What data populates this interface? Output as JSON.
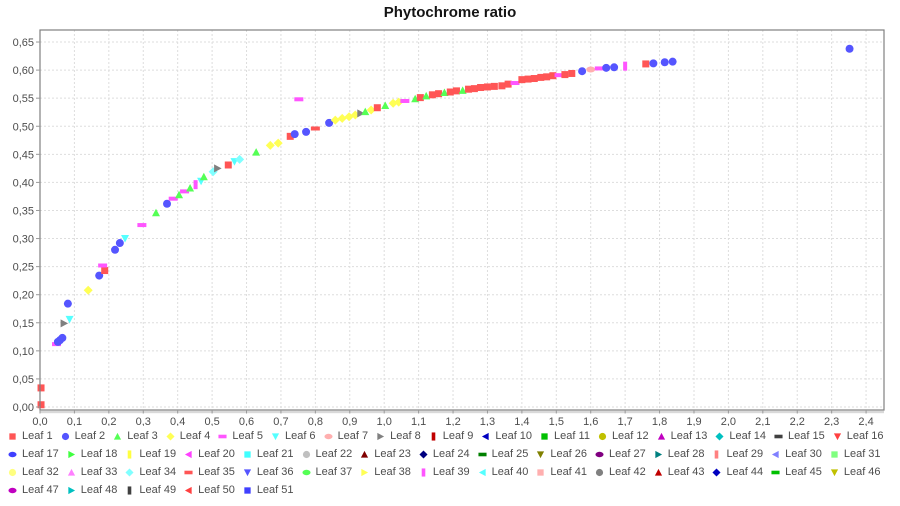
{
  "title": "Phytochrome ratio",
  "axes": {
    "x_tick_labels": [
      "0,0",
      "0,1",
      "0,2",
      "0,3",
      "0,4",
      "0,5",
      "0,6",
      "0,7",
      "0,8",
      "0,9",
      "1,0",
      "1,1",
      "1,2",
      "1,3",
      "1,4",
      "1,5",
      "1,6",
      "1,7",
      "1,8",
      "1,9",
      "2,0",
      "2,1",
      "2,2",
      "2,3",
      "2,4"
    ],
    "y_tick_labels": [
      "0,00",
      "0,05",
      "0,10",
      "0,15",
      "0,20",
      "0,25",
      "0,30",
      "0,35",
      "0,40",
      "0,45",
      "0,50",
      "0,55",
      "0,60",
      "0,65"
    ]
  },
  "colors": {
    "grid": "#dddddd",
    "plot_border": "#808080",
    "axis_band": "#d9d9d9",
    "tick": "#999999",
    "text": "#4d4d4d",
    "title_text": "#141414",
    "background": "#ffffff"
  },
  "legend": {
    "items": [
      {
        "label": "Leaf 1",
        "color": "#FF5555",
        "shape": "square"
      },
      {
        "label": "Leaf 2",
        "color": "#5555FF",
        "shape": "circle"
      },
      {
        "label": "Leaf 3",
        "color": "#55FF55",
        "shape": "triangle-up"
      },
      {
        "label": "Leaf 4",
        "color": "#FFFF55",
        "shape": "diamond"
      },
      {
        "label": "Leaf 5",
        "color": "#FF55FF",
        "shape": "hrect"
      },
      {
        "label": "Leaf 6",
        "color": "#55FFFF",
        "shape": "triangle-down"
      },
      {
        "label": "Leaf 7",
        "color": "#FFAFAF",
        "shape": "hellipse"
      },
      {
        "label": "Leaf 8",
        "color": "#808080",
        "shape": "triangle-right"
      },
      {
        "label": "Leaf 9",
        "color": "#C00000",
        "shape": "vrect"
      },
      {
        "label": "Leaf 10",
        "color": "#0000C0",
        "shape": "triangle-left"
      },
      {
        "label": "Leaf 11",
        "color": "#00C000",
        "shape": "square"
      },
      {
        "label": "Leaf 12",
        "color": "#C0C000",
        "shape": "circle"
      },
      {
        "label": "Leaf 13",
        "color": "#C000C0",
        "shape": "triangle-up"
      },
      {
        "label": "Leaf 14",
        "color": "#00C0C0",
        "shape": "diamond"
      },
      {
        "label": "Leaf 15",
        "color": "#404040",
        "shape": "hrect"
      },
      {
        "label": "Leaf 16",
        "color": "#FF4040",
        "shape": "triangle-down"
      },
      {
        "label": "Leaf 17",
        "color": "#4040FF",
        "shape": "hellipse"
      },
      {
        "label": "Leaf 18",
        "color": "#40FF40",
        "shape": "triangle-right"
      },
      {
        "label": "Leaf 19",
        "color": "#FFFF40",
        "shape": "vrect"
      },
      {
        "label": "Leaf 20",
        "color": "#FF40FF",
        "shape": "triangle-left"
      },
      {
        "label": "Leaf 21",
        "color": "#40FFFF",
        "shape": "square"
      },
      {
        "label": "Leaf 22",
        "color": "#C0C0C0",
        "shape": "circle"
      },
      {
        "label": "Leaf 23",
        "color": "#800000",
        "shape": "triangle-up"
      },
      {
        "label": "Leaf 24",
        "color": "#000080",
        "shape": "diamond"
      },
      {
        "label": "Leaf 25",
        "color": "#008000",
        "shape": "hrect"
      },
      {
        "label": "Leaf 26",
        "color": "#808000",
        "shape": "triangle-down"
      },
      {
        "label": "Leaf 27",
        "color": "#800080",
        "shape": "hellipse"
      },
      {
        "label": "Leaf 28",
        "color": "#008080",
        "shape": "triangle-right"
      },
      {
        "label": "Leaf 29",
        "color": "#FF8080",
        "shape": "vrect"
      },
      {
        "label": "Leaf 30",
        "color": "#8080FF",
        "shape": "triangle-left"
      },
      {
        "label": "Leaf 31",
        "color": "#80FF80",
        "shape": "square"
      },
      {
        "label": "Leaf 32",
        "color": "#FFFF80",
        "shape": "circle"
      },
      {
        "label": "Leaf 33",
        "color": "#FF80FF",
        "shape": "triangle-up"
      },
      {
        "label": "Leaf 34",
        "color": "#80FFFF",
        "shape": "diamond"
      },
      {
        "label": "Leaf 35",
        "color": "#FF5555",
        "shape": "hrect"
      },
      {
        "label": "Leaf 36",
        "color": "#5555FF",
        "shape": "triangle-down"
      },
      {
        "label": "Leaf 37",
        "color": "#55FF55",
        "shape": "hellipse"
      },
      {
        "label": "Leaf 38",
        "color": "#FFFF55",
        "shape": "triangle-right"
      },
      {
        "label": "Leaf 39",
        "color": "#FF55FF",
        "shape": "vrect"
      },
      {
        "label": "Leaf 40",
        "color": "#55FFFF",
        "shape": "triangle-left"
      },
      {
        "label": "Leaf 41",
        "color": "#FFAFAF",
        "shape": "square"
      },
      {
        "label": "Leaf 42",
        "color": "#808080",
        "shape": "circle"
      },
      {
        "label": "Leaf 43",
        "color": "#C00000",
        "shape": "triangle-up"
      },
      {
        "label": "Leaf 44",
        "color": "#0000C0",
        "shape": "diamond"
      },
      {
        "label": "Leaf 45",
        "color": "#00C000",
        "shape": "hrect"
      },
      {
        "label": "Leaf 46",
        "color": "#C0C000",
        "shape": "triangle-down"
      },
      {
        "label": "Leaf 47",
        "color": "#C000C0",
        "shape": "hellipse"
      },
      {
        "label": "Leaf 48",
        "color": "#00C0C0",
        "shape": "triangle-right"
      },
      {
        "label": "Leaf 49",
        "color": "#404040",
        "shape": "vrect"
      },
      {
        "label": "Leaf 50",
        "color": "#FF4040",
        "shape": "triangle-left"
      },
      {
        "label": "Leaf 51",
        "color": "#4040FF",
        "shape": "square"
      }
    ]
  },
  "chart_data": {
    "type": "scatter",
    "title": "Phytochrome ratio",
    "xlabel": "",
    "ylabel": "",
    "xlim": [
      0,
      2.45
    ],
    "ylim": [
      0,
      0.67
    ],
    "x_tick_step": 0.1,
    "y_tick_step": 0.05,
    "grid": "dashed",
    "legend_position": "bottom",
    "points": [
      {
        "x": 0.003,
        "y": 0.004,
        "series": "Leaf 1"
      },
      {
        "x": 0.003,
        "y": 0.034,
        "series": "Leaf 1"
      },
      {
        "x": 0.048,
        "y": 0.112,
        "series": "Leaf 5"
      },
      {
        "x": 0.052,
        "y": 0.116,
        "series": "Leaf 2"
      },
      {
        "x": 0.058,
        "y": 0.119,
        "series": "Leaf 2"
      },
      {
        "x": 0.065,
        "y": 0.123,
        "series": "Leaf 2"
      },
      {
        "x": 0.07,
        "y": 0.149,
        "series": "Leaf 8"
      },
      {
        "x": 0.086,
        "y": 0.156,
        "series": "Leaf 6"
      },
      {
        "x": 0.081,
        "y": 0.184,
        "series": "Leaf 2"
      },
      {
        "x": 0.14,
        "y": 0.208,
        "series": "Leaf 4"
      },
      {
        "x": 0.172,
        "y": 0.234,
        "series": "Leaf 2"
      },
      {
        "x": 0.188,
        "y": 0.243,
        "series": "Leaf 1"
      },
      {
        "x": 0.182,
        "y": 0.252,
        "series": "Leaf 5"
      },
      {
        "x": 0.218,
        "y": 0.28,
        "series": "Leaf 2"
      },
      {
        "x": 0.232,
        "y": 0.292,
        "series": "Leaf 2"
      },
      {
        "x": 0.247,
        "y": 0.3,
        "series": "Leaf 6"
      },
      {
        "x": 0.296,
        "y": 0.324,
        "series": "Leaf 5"
      },
      {
        "x": 0.337,
        "y": 0.346,
        "series": "Leaf 3"
      },
      {
        "x": 0.369,
        "y": 0.362,
        "series": "Leaf 2"
      },
      {
        "x": 0.387,
        "y": 0.371,
        "series": "Leaf 5"
      },
      {
        "x": 0.404,
        "y": 0.378,
        "series": "Leaf 3"
      },
      {
        "x": 0.42,
        "y": 0.384,
        "series": "Leaf 5"
      },
      {
        "x": 0.436,
        "y": 0.39,
        "series": "Leaf 3"
      },
      {
        "x": 0.452,
        "y": 0.396,
        "series": "Leaf 39"
      },
      {
        "x": 0.468,
        "y": 0.402,
        "series": "Leaf 6"
      },
      {
        "x": 0.476,
        "y": 0.41,
        "series": "Leaf 3"
      },
      {
        "x": 0.503,
        "y": 0.419,
        "series": "Leaf 34"
      },
      {
        "x": 0.516,
        "y": 0.425,
        "series": "Leaf 8"
      },
      {
        "x": 0.547,
        "y": 0.431,
        "series": "Leaf 1"
      },
      {
        "x": 0.565,
        "y": 0.437,
        "series": "Leaf 6"
      },
      {
        "x": 0.58,
        "y": 0.441,
        "series": "Leaf 34"
      },
      {
        "x": 0.628,
        "y": 0.454,
        "series": "Leaf 3"
      },
      {
        "x": 0.669,
        "y": 0.466,
        "series": "Leaf 4"
      },
      {
        "x": 0.692,
        "y": 0.47,
        "series": "Leaf 4"
      },
      {
        "x": 0.727,
        "y": 0.482,
        "series": "Leaf 1"
      },
      {
        "x": 0.74,
        "y": 0.486,
        "series": "Leaf 2"
      },
      {
        "x": 0.752,
        "y": 0.548,
        "series": "Leaf 5"
      },
      {
        "x": 0.773,
        "y": 0.49,
        "series": "Leaf 2"
      },
      {
        "x": 0.8,
        "y": 0.496,
        "series": "Leaf 35"
      },
      {
        "x": 0.84,
        "y": 0.506,
        "series": "Leaf 2"
      },
      {
        "x": 0.858,
        "y": 0.511,
        "series": "Leaf 4"
      },
      {
        "x": 0.878,
        "y": 0.514,
        "series": "Leaf 4"
      },
      {
        "x": 0.898,
        "y": 0.517,
        "series": "Leaf 4"
      },
      {
        "x": 0.916,
        "y": 0.52,
        "series": "Leaf 4"
      },
      {
        "x": 0.932,
        "y": 0.523,
        "series": "Leaf 8"
      },
      {
        "x": 0.945,
        "y": 0.526,
        "series": "Leaf 3"
      },
      {
        "x": 0.962,
        "y": 0.529,
        "series": "Leaf 4"
      },
      {
        "x": 0.98,
        "y": 0.533,
        "series": "Leaf 1"
      },
      {
        "x": 1.003,
        "y": 0.537,
        "series": "Leaf 3"
      },
      {
        "x": 1.026,
        "y": 0.541,
        "series": "Leaf 4"
      },
      {
        "x": 1.042,
        "y": 0.543,
        "series": "Leaf 4"
      },
      {
        "x": 1.06,
        "y": 0.545,
        "series": "Leaf 5"
      },
      {
        "x": 1.09,
        "y": 0.549,
        "series": "Leaf 3"
      },
      {
        "x": 1.105,
        "y": 0.551,
        "series": "Leaf 1"
      },
      {
        "x": 1.122,
        "y": 0.554,
        "series": "Leaf 3"
      },
      {
        "x": 1.14,
        "y": 0.556,
        "series": "Leaf 1"
      },
      {
        "x": 1.158,
        "y": 0.558,
        "series": "Leaf 1"
      },
      {
        "x": 1.175,
        "y": 0.56,
        "series": "Leaf 3"
      },
      {
        "x": 1.192,
        "y": 0.561,
        "series": "Leaf 1"
      },
      {
        "x": 1.21,
        "y": 0.563,
        "series": "Leaf 1"
      },
      {
        "x": 1.228,
        "y": 0.564,
        "series": "Leaf 3"
      },
      {
        "x": 1.245,
        "y": 0.566,
        "series": "Leaf 1"
      },
      {
        "x": 1.262,
        "y": 0.567,
        "series": "Leaf 1"
      },
      {
        "x": 1.28,
        "y": 0.569,
        "series": "Leaf 1"
      },
      {
        "x": 1.3,
        "y": 0.57,
        "series": "Leaf 1"
      },
      {
        "x": 1.32,
        "y": 0.571,
        "series": "Leaf 1"
      },
      {
        "x": 1.342,
        "y": 0.572,
        "series": "Leaf 1"
      },
      {
        "x": 1.36,
        "y": 0.575,
        "series": "Leaf 1"
      },
      {
        "x": 1.38,
        "y": 0.577,
        "series": "Leaf 5"
      },
      {
        "x": 1.4,
        "y": 0.583,
        "series": "Leaf 1"
      },
      {
        "x": 1.418,
        "y": 0.584,
        "series": "Leaf 1"
      },
      {
        "x": 1.436,
        "y": 0.585,
        "series": "Leaf 1"
      },
      {
        "x": 1.455,
        "y": 0.587,
        "series": "Leaf 1"
      },
      {
        "x": 1.472,
        "y": 0.588,
        "series": "Leaf 1"
      },
      {
        "x": 1.49,
        "y": 0.59,
        "series": "Leaf 1"
      },
      {
        "x": 1.508,
        "y": 0.591,
        "series": "Leaf 5"
      },
      {
        "x": 1.525,
        "y": 0.592,
        "series": "Leaf 1"
      },
      {
        "x": 1.545,
        "y": 0.594,
        "series": "Leaf 1"
      },
      {
        "x": 1.575,
        "y": 0.598,
        "series": "Leaf 2"
      },
      {
        "x": 1.6,
        "y": 0.601,
        "series": "Leaf 7"
      },
      {
        "x": 1.625,
        "y": 0.603,
        "series": "Leaf 5"
      },
      {
        "x": 1.645,
        "y": 0.604,
        "series": "Leaf 2"
      },
      {
        "x": 1.668,
        "y": 0.605,
        "series": "Leaf 2"
      },
      {
        "x": 1.7,
        "y": 0.607,
        "series": "Leaf 39"
      },
      {
        "x": 1.76,
        "y": 0.611,
        "series": "Leaf 1"
      },
      {
        "x": 1.782,
        "y": 0.612,
        "series": "Leaf 2"
      },
      {
        "x": 1.815,
        "y": 0.614,
        "series": "Leaf 2"
      },
      {
        "x": 1.838,
        "y": 0.615,
        "series": "Leaf 2"
      },
      {
        "x": 2.352,
        "y": 0.638,
        "series": "Leaf 2"
      }
    ]
  }
}
